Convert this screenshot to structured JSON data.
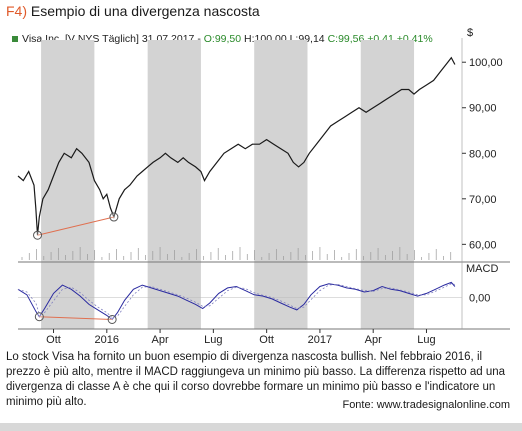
{
  "figure": {
    "number": "F4)",
    "title": "Esempio di una divergenza nascosta"
  },
  "info_bar": {
    "symbol": "Visa Inc. [V NYS  Täglich]",
    "date": "31.07.2017",
    "open": "O:99,50",
    "high": "H:100,00",
    "low": "L:99,14",
    "close": "C:99,56",
    "change": "+0,41",
    "change_pct": "+0,41%"
  },
  "caption": "Lo stock Visa ha fornito un buon esempio di divergenza nascosta bullish. Nel febbraio 2016, il prezzo è più alto, mentre il MACD raggiungeva un minimo più basso. La differenza rispetto ad una divergenza di classe A è che qui il corso dovrebbe formare un minimo più basso e l'indicatore un minimo più alto.",
  "source": "Fonte: www.tradesignalonline.com",
  "colors": {
    "shading": "#d3d3d3",
    "price_line": "#1a1a1a",
    "divergence_line": "#e07050",
    "macd_line": "#2a2aa0",
    "signal_line": "#8080c0",
    "circle": "#555555"
  },
  "chart_data": {
    "type": "line",
    "price_axis_unit": "$",
    "price_ticks": [
      "100,00",
      "90,00",
      "80,00",
      "70,00",
      "60,00"
    ],
    "price_tick_values": [
      100,
      90,
      80,
      70,
      60
    ],
    "ylim": [
      57,
      104
    ],
    "macd_label": "MACD",
    "macd_ticks": [
      "0,00"
    ],
    "x_ticks": [
      "Ott",
      "2016",
      "Apr",
      "Lug",
      "Ott",
      "2017",
      "Apr",
      "Lug"
    ],
    "x_tick_months": [
      2.0,
      5.0,
      8.0,
      11.0,
      14.0,
      17.0,
      20.0,
      23.0
    ],
    "x_range_months": [
      0,
      25.0
    ],
    "shaded_bands_months": [
      [
        1.3,
        4.3
      ],
      [
        7.3,
        10.3
      ],
      [
        13.3,
        16.3
      ],
      [
        19.3,
        22.3
      ]
    ],
    "price_series": [
      [
        0.0,
        75
      ],
      [
        0.3,
        74
      ],
      [
        0.6,
        76
      ],
      [
        0.9,
        73
      ],
      [
        1.0,
        68
      ],
      [
        1.1,
        62
      ],
      [
        1.2,
        66
      ],
      [
        1.4,
        70
      ],
      [
        1.7,
        72
      ],
      [
        2.0,
        75
      ],
      [
        2.3,
        78
      ],
      [
        2.6,
        80
      ],
      [
        3.0,
        79
      ],
      [
        3.3,
        81
      ],
      [
        3.6,
        80
      ],
      [
        4.0,
        78
      ],
      [
        4.3,
        74
      ],
      [
        4.6,
        72
      ],
      [
        4.8,
        70
      ],
      [
        5.0,
        71
      ],
      [
        5.2,
        68
      ],
      [
        5.4,
        66
      ],
      [
        5.7,
        70
      ],
      [
        6.0,
        72
      ],
      [
        6.3,
        73
      ],
      [
        6.7,
        75
      ],
      [
        7.0,
        76
      ],
      [
        7.3,
        77
      ],
      [
        7.6,
        78
      ],
      [
        8.0,
        79
      ],
      [
        8.3,
        80
      ],
      [
        8.6,
        79
      ],
      [
        9.0,
        78
      ],
      [
        9.3,
        79
      ],
      [
        9.6,
        78
      ],
      [
        10.0,
        77
      ],
      [
        10.3,
        76
      ],
      [
        10.5,
        74
      ],
      [
        10.8,
        76
      ],
      [
        11.2,
        78
      ],
      [
        11.6,
        80
      ],
      [
        12.0,
        81
      ],
      [
        12.4,
        82
      ],
      [
        12.8,
        81
      ],
      [
        13.2,
        82
      ],
      [
        13.6,
        82
      ],
      [
        14.0,
        83
      ],
      [
        14.4,
        82
      ],
      [
        14.8,
        81
      ],
      [
        15.2,
        80
      ],
      [
        15.5,
        78
      ],
      [
        15.8,
        77
      ],
      [
        16.1,
        78
      ],
      [
        16.4,
        80
      ],
      [
        16.8,
        82
      ],
      [
        17.2,
        84
      ],
      [
        17.6,
        86
      ],
      [
        18.0,
        87
      ],
      [
        18.4,
        88
      ],
      [
        18.8,
        89
      ],
      [
        19.2,
        90
      ],
      [
        19.6,
        89
      ],
      [
        20.0,
        90
      ],
      [
        20.4,
        91
      ],
      [
        20.8,
        92
      ],
      [
        21.2,
        93
      ],
      [
        21.6,
        94
      ],
      [
        22.0,
        94
      ],
      [
        22.3,
        93
      ],
      [
        22.6,
        94
      ],
      [
        23.0,
        95
      ],
      [
        23.4,
        96
      ],
      [
        23.8,
        98
      ],
      [
        24.2,
        100
      ],
      [
        24.4,
        101
      ],
      [
        24.6,
        99.5
      ]
    ],
    "macd_series": [
      [
        0.0,
        0.6
      ],
      [
        0.5,
        0.2
      ],
      [
        1.0,
        -1.0
      ],
      [
        1.2,
        -1.4
      ],
      [
        1.5,
        -0.8
      ],
      [
        2.0,
        0.3
      ],
      [
        2.5,
        0.9
      ],
      [
        3.0,
        0.6
      ],
      [
        3.5,
        0.1
      ],
      [
        4.0,
        -0.5
      ],
      [
        4.5,
        -0.9
      ],
      [
        5.0,
        -1.3
      ],
      [
        5.3,
        -1.6
      ],
      [
        5.6,
        -1.1
      ],
      [
        6.0,
        -0.2
      ],
      [
        6.5,
        0.6
      ],
      [
        7.0,
        0.9
      ],
      [
        7.5,
        0.7
      ],
      [
        8.0,
        0.5
      ],
      [
        8.5,
        0.3
      ],
      [
        9.0,
        0.1
      ],
      [
        9.5,
        -0.2
      ],
      [
        10.0,
        -0.5
      ],
      [
        10.4,
        -0.8
      ],
      [
        10.8,
        -0.4
      ],
      [
        11.3,
        0.3
      ],
      [
        11.8,
        0.7
      ],
      [
        12.3,
        0.8
      ],
      [
        12.8,
        0.5
      ],
      [
        13.3,
        0.2
      ],
      [
        13.8,
        0.1
      ],
      [
        14.3,
        -0.1
      ],
      [
        14.8,
        -0.4
      ],
      [
        15.3,
        -0.7
      ],
      [
        15.7,
        -0.9
      ],
      [
        16.1,
        -0.5
      ],
      [
        16.5,
        0.2
      ],
      [
        17.0,
        0.8
      ],
      [
        17.5,
        1.0
      ],
      [
        18.0,
        0.9
      ],
      [
        18.5,
        0.7
      ],
      [
        19.0,
        0.6
      ],
      [
        19.5,
        0.4
      ],
      [
        20.0,
        0.5
      ],
      [
        20.5,
        0.8
      ],
      [
        21.0,
        0.6
      ],
      [
        21.5,
        0.5
      ],
      [
        22.0,
        0.3
      ],
      [
        22.5,
        0.1
      ],
      [
        23.0,
        0.3
      ],
      [
        23.5,
        0.6
      ],
      [
        24.0,
        0.9
      ],
      [
        24.4,
        1.1
      ],
      [
        24.6,
        0.8
      ]
    ],
    "macd_ylim": [
      -2.0,
      2.0
    ],
    "divergence_price_points": [
      [
        1.1,
        62
      ],
      [
        5.4,
        66
      ]
    ],
    "divergence_macd_points": [
      [
        1.2,
        -1.4
      ],
      [
        5.3,
        -1.6
      ]
    ]
  }
}
